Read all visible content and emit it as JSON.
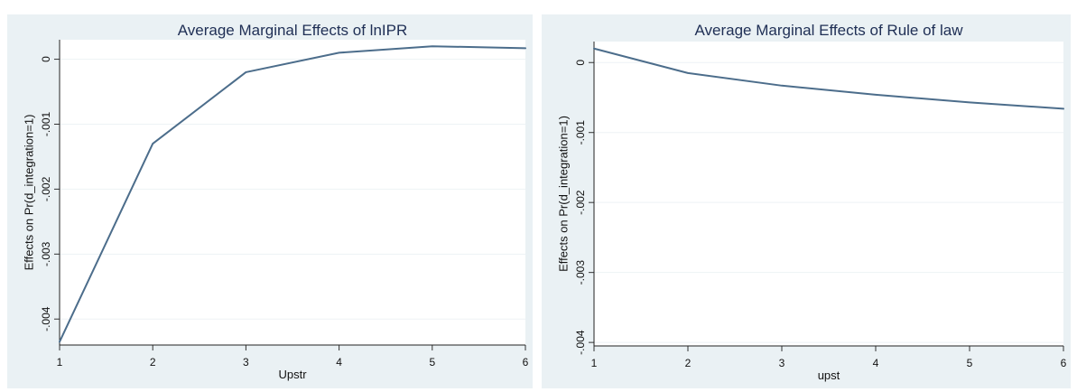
{
  "chart_data": [
    {
      "type": "line",
      "title": "Average Marginal Effects of lnIPR",
      "xlabel": "Upstr",
      "ylabel": "Effects on Pr(d_integration=1)",
      "x": [
        1,
        2,
        3,
        4,
        5,
        6
      ],
      "series": [
        {
          "values": [
            -0.00435,
            -0.0013,
            -0.0002,
            0.0001,
            0.0002,
            0.00017
          ]
        }
      ],
      "xticks": [
        1,
        2,
        3,
        4,
        5,
        6
      ],
      "xtick_labels": [
        "1",
        "2",
        "3",
        "4",
        "5",
        "6"
      ],
      "yticks": [
        0,
        -0.001,
        -0.002,
        -0.003,
        -0.004
      ],
      "ytick_labels": [
        "0",
        "-.001",
        "-.002",
        "-.003",
        "-.004"
      ],
      "xlim": [
        1,
        6
      ],
      "ylim": [
        -0.0044,
        0.0003
      ],
      "grid": true,
      "colors": {
        "background": "#eaf1f4",
        "plot": "#ffffff",
        "line": "#4c6d8b",
        "grid": "#edf2f5",
        "title": "#1f2f55"
      }
    },
    {
      "type": "line",
      "title": "Average Marginal Effects of Rule of law",
      "xlabel": "upst",
      "ylabel": "Effects on Pr(d_integration=1)",
      "x": [
        1,
        2,
        3,
        4,
        5,
        6
      ],
      "series": [
        {
          "values": [
            0.0002,
            -0.00015,
            -0.00033,
            -0.00046,
            -0.00057,
            -0.00066
          ]
        }
      ],
      "xticks": [
        1,
        2,
        3,
        4,
        5,
        6
      ],
      "xtick_labels": [
        "1",
        "2",
        "3",
        "4",
        "5",
        "6"
      ],
      "yticks": [
        0,
        -0.001,
        -0.002,
        -0.003,
        -0.004
      ],
      "ytick_labels": [
        "0",
        "-.001",
        "-.002",
        "-.003",
        "-.004"
      ],
      "xlim": [
        1,
        6
      ],
      "ylim": [
        -0.00405,
        0.0003
      ],
      "grid": true,
      "colors": {
        "background": "#eaf1f4",
        "plot": "#ffffff",
        "line": "#4c6d8b",
        "grid": "#edf2f5",
        "title": "#1f2f55"
      }
    }
  ]
}
